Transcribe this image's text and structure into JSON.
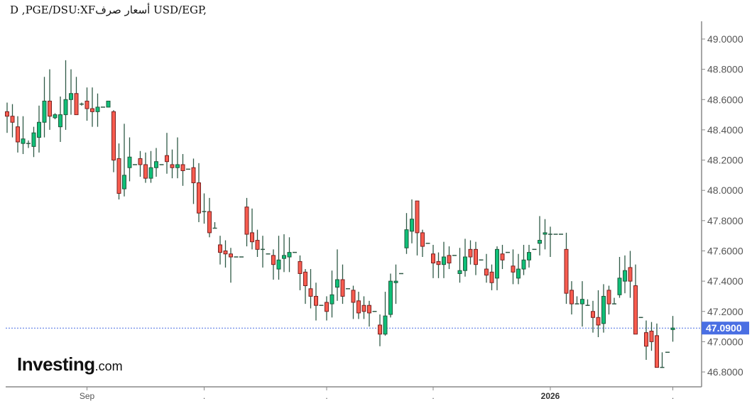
{
  "title": "D ,PGE/DSU:XFأسعار صرف USD/EGP,",
  "logo": {
    "brand": "Investing",
    "suffix": ".com"
  },
  "chart_data": {
    "type": "candlestick",
    "title": "D ,PGE/DSU:XFأسعار صرف USD/EGP,",
    "ylim": [
      46.75,
      49.12
    ],
    "yticks": [
      "46.8000",
      "47.0000",
      "47.2000",
      "47.4000",
      "47.6000",
      "47.8000",
      "48.0000",
      "48.2000",
      "48.4000",
      "48.6000",
      "48.8000",
      "49.0000"
    ],
    "xticks": [
      {
        "index": 15,
        "label": "Sep",
        "bold": false
      },
      {
        "index": 37,
        "label": ".",
        "bold": false
      },
      {
        "index": 60,
        "label": ".",
        "bold": false
      },
      {
        "index": 80,
        "label": ".",
        "bold": false
      },
      {
        "index": 102,
        "label": "2026",
        "bold": true
      },
      {
        "index": 125,
        "label": ".",
        "bold": false
      }
    ],
    "last_price": {
      "value": 47.09,
      "label": "47.0900"
    },
    "colors": {
      "up": "#0fbf78",
      "up_border": "#1f5a3c",
      "down": "#f85c4f",
      "down_border": "#7a2020",
      "wick": "#2f5a46",
      "last": "#4a6fe3"
    },
    "ohlc_columns": [
      "open",
      "high",
      "low",
      "close"
    ],
    "candles": [
      [
        48.52,
        48.58,
        48.38,
        48.49
      ],
      [
        48.49,
        48.57,
        48.35,
        48.45
      ],
      [
        48.42,
        48.49,
        48.25,
        48.32
      ],
      [
        48.31,
        48.49,
        48.24,
        48.34
      ],
      [
        48.31,
        48.33,
        48.28,
        48.31
      ],
      [
        48.29,
        48.42,
        48.22,
        48.38
      ],
      [
        48.35,
        48.56,
        48.25,
        48.45
      ],
      [
        48.45,
        48.75,
        48.35,
        48.59
      ],
      [
        48.59,
        48.8,
        48.4,
        48.49
      ],
      [
        48.48,
        48.51,
        48.47,
        48.5
      ],
      [
        48.42,
        48.62,
        48.32,
        48.5
      ],
      [
        48.5,
        48.86,
        48.4,
        48.6
      ],
      [
        48.6,
        48.8,
        48.5,
        48.64
      ],
      [
        48.64,
        48.75,
        48.5,
        48.5
      ],
      [
        48.57,
        48.58,
        48.56,
        48.57
      ],
      [
        48.59,
        48.68,
        48.46,
        48.54
      ],
      [
        48.54,
        48.68,
        48.42,
        48.52
      ],
      [
        48.52,
        48.64,
        48.42,
        48.55
      ],
      [
        48.55,
        48.55,
        48.55,
        48.55
      ],
      [
        48.55,
        48.59,
        48.55,
        48.59
      ],
      [
        48.52,
        48.53,
        48.12,
        48.2
      ],
      [
        48.21,
        48.31,
        47.94,
        47.98
      ],
      [
        48.01,
        48.44,
        47.96,
        48.1
      ],
      [
        48.15,
        48.35,
        48.06,
        48.22
      ],
      [
        48.17,
        48.17,
        48.17,
        48.17
      ],
      [
        48.21,
        48.26,
        48.09,
        48.17
      ],
      [
        48.17,
        48.25,
        48.05,
        48.08
      ],
      [
        48.08,
        48.26,
        48.05,
        48.15
      ],
      [
        48.15,
        48.28,
        48.09,
        48.19
      ],
      [
        48.17,
        48.17,
        48.17,
        48.17
      ],
      [
        48.23,
        48.38,
        48.11,
        48.19
      ],
      [
        48.17,
        48.27,
        48.08,
        48.15
      ],
      [
        48.15,
        48.35,
        48.08,
        48.17
      ],
      [
        48.17,
        48.24,
        48.03,
        48.13
      ],
      [
        48.14,
        48.14,
        48.14,
        48.14
      ],
      [
        48.15,
        48.21,
        47.91,
        48.05
      ],
      [
        48.05,
        48.18,
        47.79,
        47.85
      ],
      [
        47.86,
        47.98,
        47.78,
        47.86
      ],
      [
        47.86,
        47.95,
        47.69,
        47.72
      ],
      [
        47.75,
        47.79,
        47.75,
        47.75
      ],
      [
        47.64,
        47.7,
        47.51,
        47.59
      ],
      [
        47.6,
        47.67,
        47.49,
        47.58
      ],
      [
        47.58,
        47.62,
        47.39,
        47.56
      ],
      [
        47.56,
        47.56,
        47.56,
        47.56
      ],
      [
        47.56,
        47.56,
        47.56,
        47.56
      ],
      [
        47.89,
        47.95,
        47.63,
        47.71
      ],
      [
        47.72,
        47.88,
        47.61,
        47.66
      ],
      [
        47.67,
        47.74,
        47.56,
        47.61
      ],
      [
        47.61,
        47.7,
        47.49,
        47.61
      ],
      [
        47.58,
        47.58,
        47.58,
        47.58
      ],
      [
        47.57,
        47.61,
        47.41,
        47.51
      ],
      [
        47.48,
        47.7,
        47.41,
        47.54
      ],
      [
        47.55,
        47.71,
        47.46,
        47.57
      ],
      [
        47.56,
        47.69,
        47.46,
        47.59
      ],
      [
        47.59,
        47.59,
        47.59,
        47.59
      ],
      [
        47.53,
        47.57,
        47.34,
        47.45
      ],
      [
        47.46,
        47.48,
        47.25,
        47.37
      ],
      [
        47.35,
        47.48,
        47.22,
        47.3
      ],
      [
        47.3,
        47.39,
        47.14,
        47.24
      ],
      [
        47.24,
        47.24,
        47.24,
        47.24
      ],
      [
        47.26,
        47.3,
        47.14,
        47.2
      ],
      [
        47.25,
        47.47,
        47.16,
        47.31
      ],
      [
        47.36,
        47.61,
        47.27,
        47.41
      ],
      [
        47.41,
        47.51,
        47.25,
        47.3
      ],
      [
        47.35,
        47.35,
        47.35,
        47.35
      ],
      [
        47.34,
        47.37,
        47.15,
        47.26
      ],
      [
        47.27,
        47.33,
        47.15,
        47.19
      ],
      [
        47.24,
        47.3,
        47.15,
        47.2
      ],
      [
        47.24,
        47.27,
        47.1,
        47.19
      ],
      [
        47.2,
        47.2,
        47.2,
        47.2
      ],
      [
        47.11,
        47.18,
        46.97,
        47.05
      ],
      [
        47.05,
        47.33,
        47.04,
        47.17
      ],
      [
        47.18,
        47.45,
        47.16,
        47.4
      ],
      [
        47.39,
        47.51,
        47.25,
        47.4
      ],
      [
        47.45,
        47.45,
        47.45,
        47.45
      ],
      [
        47.62,
        47.85,
        47.58,
        47.74
      ],
      [
        47.73,
        47.94,
        47.65,
        47.81
      ],
      [
        47.93,
        47.93,
        47.57,
        47.72
      ],
      [
        47.72,
        47.74,
        47.56,
        47.63
      ],
      [
        47.65,
        47.65,
        47.65,
        47.65
      ],
      [
        47.58,
        47.64,
        47.42,
        47.52
      ],
      [
        47.53,
        47.59,
        47.42,
        47.51
      ],
      [
        47.51,
        47.66,
        47.42,
        47.56
      ],
      [
        47.57,
        47.63,
        47.48,
        47.52
      ],
      [
        47.57,
        47.57,
        47.57,
        47.57
      ],
      [
        47.45,
        47.62,
        47.39,
        47.47
      ],
      [
        47.47,
        47.68,
        47.43,
        47.56
      ],
      [
        47.61,
        47.67,
        47.51,
        47.56
      ],
      [
        47.61,
        47.66,
        47.44,
        47.51
      ],
      [
        47.54,
        47.54,
        47.54,
        47.54
      ],
      [
        47.48,
        47.58,
        47.39,
        47.44
      ],
      [
        47.46,
        47.51,
        47.34,
        47.39
      ],
      [
        47.42,
        47.63,
        47.34,
        47.61
      ],
      [
        47.58,
        47.64,
        47.48,
        47.54
      ],
      [
        47.59,
        47.59,
        47.59,
        47.59
      ],
      [
        47.5,
        47.61,
        47.38,
        47.46
      ],
      [
        47.42,
        47.58,
        47.38,
        47.48
      ],
      [
        47.48,
        47.64,
        47.44,
        47.54
      ],
      [
        47.54,
        47.64,
        47.49,
        47.59
      ],
      [
        47.61,
        47.61,
        47.61,
        47.61
      ],
      [
        47.65,
        47.83,
        47.57,
        47.67
      ],
      [
        47.71,
        47.81,
        47.61,
        47.72
      ],
      [
        47.71,
        47.76,
        47.56,
        47.71
      ],
      [
        47.71,
        47.71,
        47.71,
        47.71
      ],
      [
        47.71,
        47.71,
        47.71,
        47.71
      ],
      [
        47.61,
        47.72,
        47.25,
        47.32
      ],
      [
        47.34,
        47.4,
        47.18,
        47.25
      ],
      [
        47.25,
        47.3,
        47.25,
        47.25
      ],
      [
        47.25,
        47.4,
        47.1,
        47.28
      ],
      [
        47.24,
        47.28,
        47.24,
        47.24
      ],
      [
        47.2,
        47.27,
        47.06,
        47.16
      ],
      [
        47.16,
        47.34,
        47.03,
        47.11
      ],
      [
        47.12,
        47.38,
        47.06,
        47.3
      ],
      [
        47.34,
        47.37,
        47.18,
        47.25
      ],
      [
        47.25,
        47.29,
        47.25,
        47.25
      ],
      [
        47.31,
        47.56,
        47.29,
        47.42
      ],
      [
        47.4,
        47.57,
        47.32,
        47.47
      ],
      [
        47.49,
        47.6,
        47.29,
        47.4
      ],
      [
        47.37,
        47.51,
        47.05,
        47.05
      ],
      [
        47.16,
        47.16,
        47.16,
        47.16
      ],
      [
        47.06,
        47.14,
        46.88,
        46.97
      ],
      [
        47.07,
        47.13,
        46.94,
        47.0
      ],
      [
        47.04,
        47.12,
        46.83,
        46.83
      ],
      [
        46.83,
        46.93,
        46.83,
        46.83
      ],
      [
        46.93,
        46.93,
        46.93,
        46.93
      ],
      [
        47.08,
        47.17,
        47.0,
        47.09
      ]
    ]
  }
}
